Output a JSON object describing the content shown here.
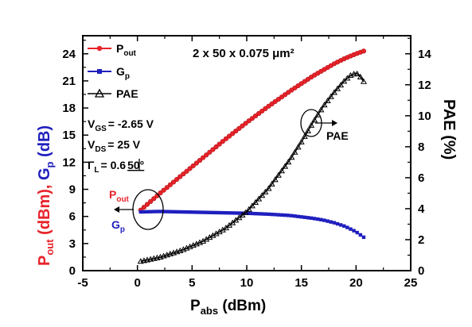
{
  "colors": {
    "pout": "#e8232a",
    "gp": "#1f1fbf",
    "pae": "#000000"
  },
  "chart_data": {
    "type": "line",
    "title": "2 x 50 x 0.075 μm²",
    "xlabel": {
      "main": "P",
      "sub": "abs",
      "rest": " (dBm)"
    },
    "ylabel_left": [
      {
        "main": "P",
        "sub": "out",
        "rest": " (dBm), ",
        "color": "#e8232a"
      },
      {
        "main": "G",
        "sub": "p",
        "rest": " (dB)",
        "color": "#1f1fbf"
      }
    ],
    "ylabel_right": "PAE (%)",
    "xlim": [
      -5,
      25
    ],
    "ylim_left": [
      0,
      26
    ],
    "ylim_right": [
      0,
      15.1667
    ],
    "xticks": [
      -5,
      0,
      5,
      10,
      15,
      20,
      25
    ],
    "yticks_left": [
      0,
      3,
      6,
      9,
      12,
      15,
      18,
      21,
      24
    ],
    "yticks_right": [
      0,
      2,
      4,
      6,
      8,
      10,
      12,
      14
    ],
    "legend_placement": "top-left",
    "series": [
      {
        "name": "Pout",
        "name_main": "P",
        "name_sub": "out",
        "axis": "left",
        "marker": "circle",
        "color": "#e8232a",
        "x": [
          0.3,
          2,
          4,
          6,
          8,
          10,
          12,
          14,
          16,
          18,
          19,
          20,
          20.7
        ],
        "y": [
          6.7,
          8.5,
          10.5,
          12.5,
          14.5,
          16.4,
          18.2,
          19.9,
          21.5,
          22.9,
          23.5,
          24.0,
          24.3
        ]
      },
      {
        "name": "Gp",
        "name_main": "G",
        "name_sub": "p",
        "axis": "left",
        "marker": "square",
        "color": "#1f1fbf",
        "x": [
          0.3,
          2,
          4,
          6,
          8,
          10,
          12,
          14,
          16,
          17,
          18,
          19,
          20,
          20.7
        ],
        "y": [
          6.5,
          6.55,
          6.5,
          6.45,
          6.4,
          6.35,
          6.25,
          6.1,
          5.8,
          5.6,
          5.3,
          4.9,
          4.3,
          3.7
        ]
      },
      {
        "name": "PAE",
        "name_main": "PAE",
        "name_sub": "",
        "axis": "right",
        "marker": "triangle",
        "color": "#000000",
        "x": [
          0.3,
          2,
          4,
          6,
          8,
          10,
          12,
          14,
          15,
          16,
          17,
          18,
          19,
          19.5,
          20,
          20.3,
          20.7
        ],
        "y": [
          0.6,
          0.85,
          1.3,
          1.9,
          2.7,
          3.8,
          5.3,
          7.2,
          8.3,
          9.5,
          10.6,
          11.5,
          12.3,
          12.6,
          12.75,
          12.6,
          12.2
        ]
      }
    ],
    "annotations": {
      "vgs": {
        "main": "V",
        "sub": "GS",
        "rest": "= -2.65 V"
      },
      "vds": {
        "main": "V",
        "sub": "DS",
        "rest": "= 25 V"
      },
      "gamma": {
        "main": "Γ",
        "sub": "L",
        "rest": "= 0.6",
        "angle": "50°"
      },
      "pout_label": {
        "main": "P",
        "sub": "out"
      },
      "gp_label": {
        "main": "G",
        "sub": "p"
      },
      "pae_label": "PAE"
    }
  }
}
